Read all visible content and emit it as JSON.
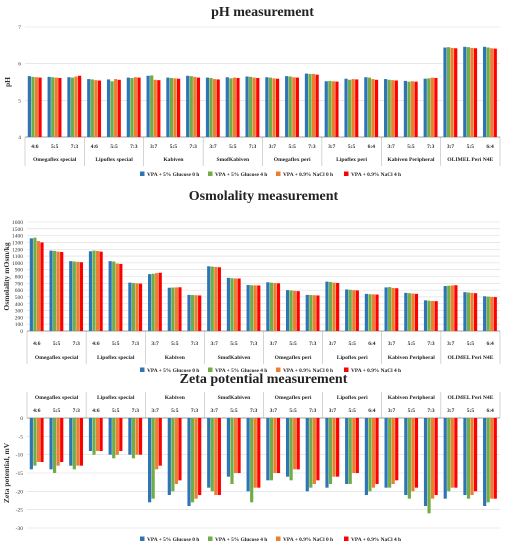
{
  "palette": {
    "blue": "#2e75b6",
    "green": "#70ad47",
    "orange": "#ed7d31",
    "red": "#ff0000"
  },
  "chart_data": [
    {
      "type": "bar",
      "title": "pH measurement",
      "xlabel": "",
      "ylabel": "pH",
      "ylim": [
        4,
        7
      ],
      "yticks": [
        4,
        5,
        6,
        7
      ],
      "grid": true,
      "legend_position": "bottom",
      "categories": [
        "4:6",
        "5:5",
        "7:3",
        "4:6",
        "5:5",
        "7:3",
        "3:7",
        "5:5",
        "7:3",
        "3:7",
        "5:5",
        "7:3",
        "3:7",
        "5:5",
        "7:3",
        "3:7",
        "5:5",
        "6:4",
        "3:7",
        "5:5",
        "7:3",
        "3:7",
        "5:5",
        "6:4"
      ],
      "groups": [
        {
          "label": "Omegaflex special",
          "span": 3
        },
        {
          "label": "Lipoflex special",
          "span": 3
        },
        {
          "label": "Kabiven",
          "span": 3
        },
        {
          "label": "SmofKabiven",
          "span": 3
        },
        {
          "label": "Omegaflex peri",
          "span": 3
        },
        {
          "label": "Lipoflex peri",
          "span": 3
        },
        {
          "label": "Kabiven Peripheral",
          "span": 3
        },
        {
          "label": "OLIMEL Peri N4E",
          "span": 3
        }
      ],
      "series": [
        {
          "name": "VPA + 5% Glucose 0 h",
          "color": "#2e75b6",
          "values": [
            5.66,
            5.64,
            5.63,
            5.58,
            5.57,
            5.62,
            5.67,
            5.62,
            5.67,
            5.62,
            5.63,
            5.65,
            5.63,
            5.66,
            5.73,
            5.52,
            5.59,
            5.63,
            5.58,
            5.53,
            5.59,
            6.44,
            6.46,
            6.46
          ]
        },
        {
          "name": "VPA + 5% Glucose 4 h",
          "color": "#70ad47",
          "values": [
            5.64,
            5.63,
            5.62,
            5.57,
            5.52,
            5.61,
            5.68,
            5.61,
            5.66,
            5.61,
            5.6,
            5.64,
            5.62,
            5.65,
            5.72,
            5.53,
            5.56,
            5.62,
            5.56,
            5.51,
            5.6,
            6.45,
            6.45,
            6.44
          ]
        },
        {
          "name": "VPA + 0.9% NaCl 0 h",
          "color": "#ed7d31",
          "values": [
            5.63,
            5.62,
            5.65,
            5.55,
            5.58,
            5.63,
            5.56,
            5.6,
            5.64,
            5.58,
            5.62,
            5.62,
            5.6,
            5.63,
            5.72,
            5.52,
            5.58,
            5.58,
            5.55,
            5.52,
            5.62,
            6.43,
            6.43,
            6.42
          ]
        },
        {
          "name": "VPA + 0.9% NaCl 4 h",
          "color": "#ff0000",
          "values": [
            5.62,
            5.61,
            5.67,
            5.54,
            5.56,
            5.62,
            5.55,
            5.59,
            5.62,
            5.57,
            5.61,
            5.61,
            5.59,
            5.62,
            5.7,
            5.51,
            5.57,
            5.56,
            5.54,
            5.51,
            5.61,
            6.42,
            6.42,
            6.41
          ]
        }
      ]
    },
    {
      "type": "bar",
      "title": "Osmolality measurement",
      "xlabel": "",
      "ylabel": "Osmolality mOsm/kg",
      "ylim": [
        0,
        1600
      ],
      "yticks": [
        0,
        100,
        200,
        300,
        400,
        500,
        600,
        700,
        800,
        900,
        1000,
        1100,
        1200,
        1300,
        1400,
        1500,
        1600
      ],
      "grid": true,
      "legend_position": "bottom",
      "categories": [
        "4:6",
        "5:5",
        "7:3",
        "4:6",
        "5:5",
        "7:3",
        "3:7",
        "5:5",
        "7:3",
        "3:7",
        "5:5",
        "7:3",
        "3:7",
        "5:5",
        "7:3",
        "3:7",
        "5:5",
        "6:4",
        "3:7",
        "5:5",
        "7:3",
        "3:7",
        "5:5",
        "6:4"
      ],
      "groups": [
        {
          "label": "Omegaflex special",
          "span": 3
        },
        {
          "label": "Lipoflex special",
          "span": 3
        },
        {
          "label": "Kabiven",
          "span": 3
        },
        {
          "label": "SmofKabiven",
          "span": 3
        },
        {
          "label": "Omegaflex peri",
          "span": 3
        },
        {
          "label": "Lipoflex peri",
          "span": 3
        },
        {
          "label": "Kabiven Peripheral",
          "span": 3
        },
        {
          "label": "OLIMEL Peri N4E",
          "span": 3
        }
      ],
      "series": [
        {
          "name": "VPA + 5% Glucose 0 h",
          "color": "#2e75b6",
          "values": [
            1360,
            1180,
            1025,
            1170,
            1025,
            710,
            835,
            635,
            530,
            950,
            780,
            675,
            715,
            600,
            530,
            725,
            610,
            545,
            640,
            560,
            450,
            660,
            570,
            510
          ]
        },
        {
          "name": "VPA + 5% Glucose 4 h",
          "color": "#70ad47",
          "values": [
            1370,
            1175,
            1020,
            1180,
            1020,
            705,
            840,
            638,
            528,
            945,
            775,
            672,
            710,
            595,
            528,
            720,
            605,
            540,
            645,
            555,
            445,
            665,
            565,
            505
          ]
        },
        {
          "name": "VPA + 0.9% NaCl 0 h",
          "color": "#ed7d31",
          "values": [
            1320,
            1165,
            1015,
            1175,
            990,
            700,
            850,
            640,
            525,
            940,
            772,
            670,
            705,
            590,
            525,
            710,
            600,
            538,
            632,
            550,
            440,
            670,
            560,
            500
          ]
        },
        {
          "name": "VPA + 0.9% NaCl 4 h",
          "color": "#ff0000",
          "values": [
            1300,
            1160,
            1010,
            1165,
            985,
            695,
            855,
            642,
            522,
            935,
            770,
            668,
            700,
            585,
            522,
            705,
            595,
            535,
            628,
            545,
            438,
            672,
            555,
            498
          ]
        }
      ]
    },
    {
      "type": "bar",
      "title": "Zeta potential measurement",
      "xlabel": "",
      "ylabel": "Zeta potential, mV",
      "ylim": [
        -30,
        0
      ],
      "yticks": [
        0,
        -5,
        -10,
        -15,
        -20,
        -25,
        -30
      ],
      "grid": true,
      "legend_position": "bottom",
      "categories": [
        "4:6",
        "5:5",
        "7:3",
        "4:6",
        "5:5",
        "7:3",
        "3:7",
        "5:5",
        "7:3",
        "3:7",
        "5:5",
        "7:3",
        "3:7",
        "5:5",
        "7:3",
        "3:7",
        "5:5",
        "6:4",
        "3:7",
        "5:5",
        "7:3",
        "3:7",
        "5:5",
        "6:4"
      ],
      "groups": [
        {
          "label": "Omegaflex special",
          "span": 3
        },
        {
          "label": "Lipoflex special",
          "span": 3
        },
        {
          "label": "Kabiven",
          "span": 3
        },
        {
          "label": "SmofKabiven",
          "span": 3
        },
        {
          "label": "Omegaflex peri",
          "span": 3
        },
        {
          "label": "Lipoflex peri",
          "span": 3
        },
        {
          "label": "Kabiven Peripheral",
          "span": 3
        },
        {
          "label": "OLIMEL Peri N4E",
          "span": 3
        }
      ],
      "series": [
        {
          "name": "VPA + 5% Glucose 0 h",
          "color": "#2e75b6",
          "values": [
            -14,
            -14,
            -13,
            -9,
            -10,
            -10,
            -23,
            -21,
            -24,
            -19,
            -16,
            -20,
            -17,
            -16,
            -20,
            -19,
            -18,
            -21,
            -19,
            -21,
            -24,
            -22,
            -21,
            -24
          ]
        },
        {
          "name": "VPA + 5% Glucose 4 h",
          "color": "#70ad47",
          "values": [
            -13,
            -15,
            -14,
            -10,
            -11,
            -11,
            -22,
            -20,
            -23,
            -20,
            -18,
            -23,
            -17,
            -17,
            -19,
            -18,
            -18,
            -20,
            -19,
            -22,
            -26,
            -20,
            -22,
            -23
          ]
        },
        {
          "name": "VPA + 0.9% NaCl 0 h",
          "color": "#ed7d31",
          "values": [
            -12,
            -13,
            -13,
            -9,
            -10,
            -10,
            -14,
            -18,
            -22,
            -21,
            -15,
            -19,
            -15,
            -14,
            -18,
            -16,
            -15,
            -19,
            -18,
            -20,
            -22,
            -19,
            -21,
            -22
          ]
        },
        {
          "name": "VPA + 0.9% NaCl 4 h",
          "color": "#ff0000",
          "values": [
            -12,
            -12,
            -13,
            -9,
            -9,
            -10,
            -13,
            -17,
            -21,
            -21,
            -15,
            -19,
            -15,
            -14,
            -17,
            -16,
            -15,
            -18,
            -17,
            -19,
            -21,
            -19,
            -20,
            -22
          ]
        }
      ]
    }
  ]
}
